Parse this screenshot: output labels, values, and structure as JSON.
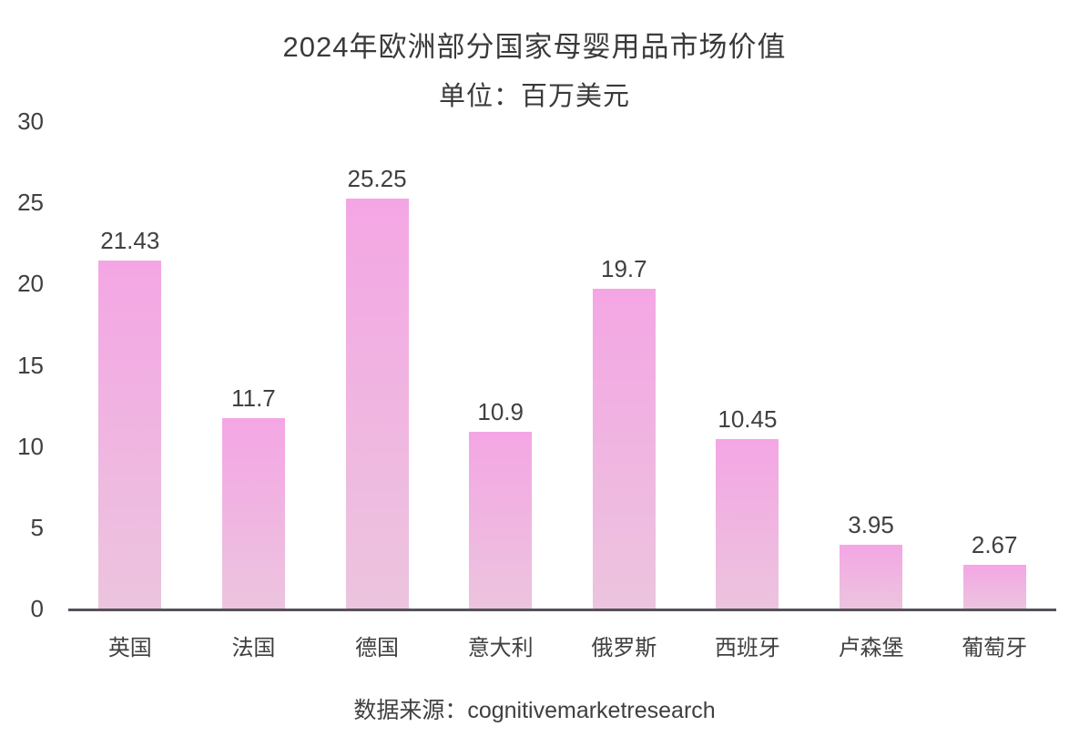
{
  "chart_data": {
    "type": "bar",
    "title": "2024年欧洲部分国家母婴用品市场价值",
    "subtitle": "单位：百万美元",
    "categories": [
      "英国",
      "法国",
      "德国",
      "意大利",
      "俄罗斯",
      "西班牙",
      "卢森堡",
      "葡萄牙"
    ],
    "values": [
      21.43,
      11.7,
      25.25,
      10.9,
      19.7,
      10.45,
      3.95,
      2.67
    ],
    "value_labels": [
      "21.43",
      "11.7",
      "25.25",
      "10.9",
      "19.7",
      "10.45",
      "3.95",
      "2.67"
    ],
    "y_ticks": [
      0,
      5,
      10,
      15,
      20,
      25,
      30
    ],
    "ylim": [
      0,
      30
    ],
    "xlabel": "",
    "ylabel": "",
    "grid": false,
    "legend": "none",
    "source": "数据来源：cognitivemarketresearch",
    "colors": {
      "bar_gradient_top": "#f4a6e4",
      "bar_gradient_bottom": "#ecc4de",
      "axis_line": "#55525a",
      "title_text": "#3a3a3a",
      "label_text": "#404040",
      "background": "#ffffff"
    }
  }
}
